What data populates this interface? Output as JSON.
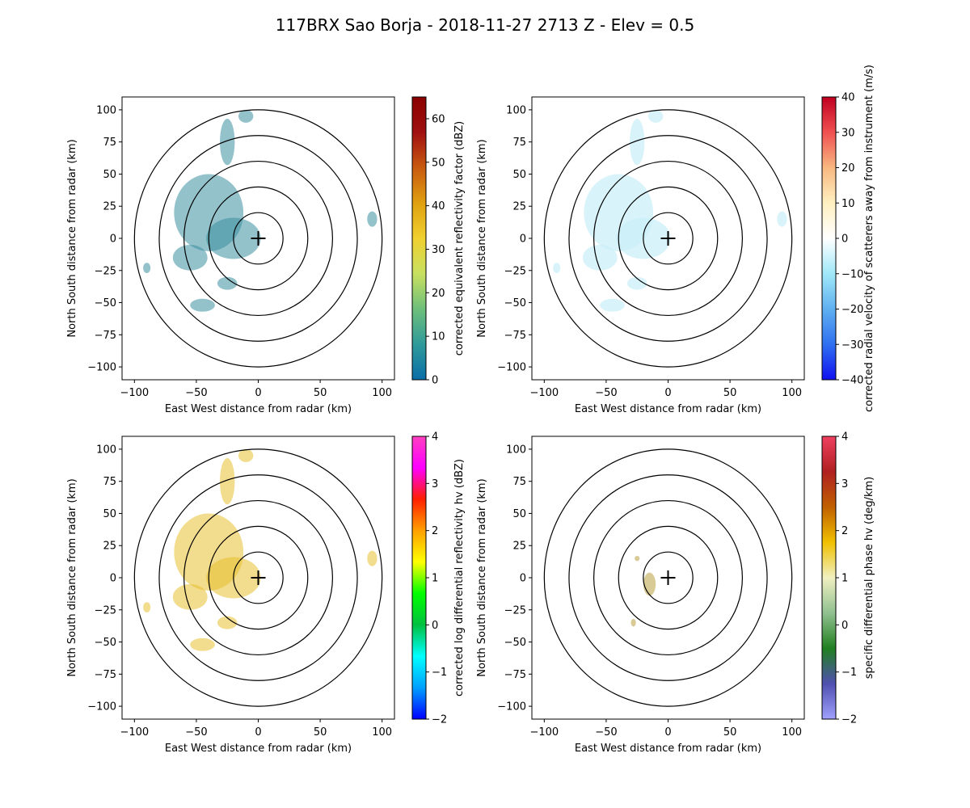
{
  "figure_title": "117BRX Sao Borja - 2018-11-27 2713 Z -  Elev = 0.5",
  "chart_data": [
    {
      "type": "heatmap",
      "id": "reflectivity",
      "xlabel": "East West distance from radar (km)",
      "ylabel": "North South distance from radar (km)",
      "xlim": [
        -110,
        110
      ],
      "ylim": [
        -110,
        110
      ],
      "xticks": [
        -100,
        -50,
        0,
        50,
        100
      ],
      "yticks": [
        -100,
        -75,
        -50,
        -25,
        0,
        25,
        50,
        75,
        100
      ],
      "range_rings_km": [
        20,
        40,
        60,
        80,
        100
      ],
      "colorbar": {
        "label": "corrected equivalent reflectivity factor (dBZ)",
        "vmin": 0,
        "vmax": 65,
        "ticks": [
          0,
          10,
          20,
          30,
          40,
          50,
          60
        ],
        "colors": [
          "#0a6ea8",
          "#2f9a9a",
          "#6dbf7a",
          "#c8e060",
          "#f0d030",
          "#e0a010",
          "#c85a10",
          "#a01010",
          "#8a0000"
        ]
      },
      "echo_color": "#3a8fa0"
    },
    {
      "type": "heatmap",
      "id": "velocity",
      "xlabel": "East West distance from radar (km)",
      "ylabel": "North South distance from radar (km)",
      "xlim": [
        -110,
        110
      ],
      "ylim": [
        -110,
        110
      ],
      "xticks": [
        -100,
        -50,
        0,
        50,
        100
      ],
      "yticks": [
        -100,
        -75,
        -50,
        -25,
        0,
        25,
        50,
        75,
        100
      ],
      "range_rings_km": [
        20,
        40,
        60,
        80,
        100
      ],
      "colorbar": {
        "label": "corrected radial velocity of scatterers away from instrument (m/s)",
        "vmin": -40,
        "vmax": 40,
        "ticks": [
          -40,
          -30,
          -20,
          -10,
          0,
          10,
          20,
          30,
          40
        ],
        "colors": [
          "#1010f0",
          "#3070f0",
          "#60b0f0",
          "#a0e8f8",
          "#ffffff",
          "#fff0c0",
          "#f8b880",
          "#f05050",
          "#c00020"
        ]
      },
      "echo_color": "#c9eef8"
    },
    {
      "type": "heatmap",
      "id": "zdr",
      "xlabel": "East West distance from radar (km)",
      "ylabel": "North South distance from radar (km)",
      "xlim": [
        -110,
        110
      ],
      "ylim": [
        -110,
        110
      ],
      "xticks": [
        -100,
        -50,
        0,
        50,
        100
      ],
      "yticks": [
        -100,
        -75,
        -50,
        -25,
        0,
        25,
        50,
        75,
        100
      ],
      "range_rings_km": [
        20,
        40,
        60,
        80,
        100
      ],
      "colorbar": {
        "label": "corrected log differential reflectivity hv (dBZ)",
        "vmin": -2,
        "vmax": 4,
        "ticks": [
          -2,
          -1,
          0,
          1,
          2,
          3,
          4
        ],
        "colors": [
          "#0000ff",
          "#00a0ff",
          "#00ffff",
          "#00c040",
          "#00ff00",
          "#ffff00",
          "#ffa000",
          "#ff2000",
          "#ff00ff",
          "#ff40c0"
        ]
      },
      "echo_color": "#e8c030"
    },
    {
      "type": "heatmap",
      "id": "kdp",
      "xlabel": "East West distance from radar (km)",
      "ylabel": "North South distance from radar (km)",
      "xlim": [
        -110,
        110
      ],
      "ylim": [
        -110,
        110
      ],
      "xticks": [
        -100,
        -50,
        0,
        50,
        100
      ],
      "yticks": [
        -100,
        -75,
        -50,
        -25,
        0,
        25,
        50,
        75,
        100
      ],
      "range_rings_km": [
        20,
        40,
        60,
        80,
        100
      ],
      "colorbar": {
        "label": "specific differential phase hv (deg/km)",
        "vmin": -2,
        "vmax": 4,
        "ticks": [
          -2,
          -1,
          0,
          1,
          2,
          3,
          4
        ],
        "colors": [
          "#a0a0ff",
          "#5050b0",
          "#208020",
          "#90c090",
          "#f0f0c0",
          "#f0c000",
          "#c06000",
          "#b02020",
          "#f04060"
        ]
      },
      "echo_color": "#b8a040"
    }
  ]
}
